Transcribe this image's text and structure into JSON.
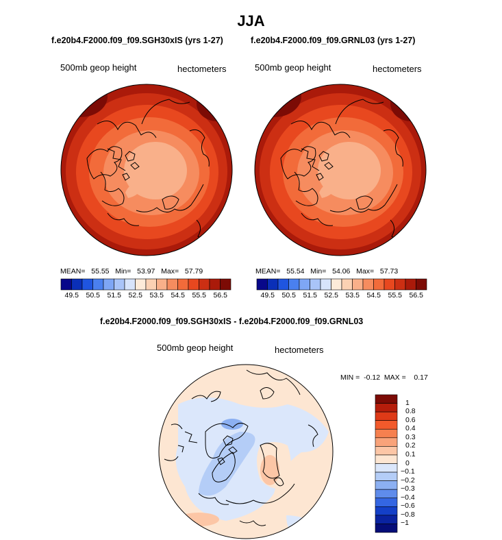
{
  "title": "JJA",
  "panels": [
    {
      "run_title": "f.e20b4.F2000.f09_f09.SGH30xIS (yrs 1-27)",
      "left_label": "500mb geop height",
      "right_label": "hectometers",
      "stats": {
        "mean_label": "MEAN=",
        "mean": "55.55",
        "min_label": "Min=",
        "min": "53.97",
        "max_label": "Max=",
        "max": "57.79"
      }
    },
    {
      "run_title": "f.e20b4.F2000.f09_f09.GRNL03 (yrs 1-27)",
      "left_label": "500mb geop height",
      "right_label": "hectometers",
      "stats": {
        "mean_label": "MEAN=",
        "mean": "55.54",
        "min_label": "Min=",
        "min": "54.06",
        "max_label": "Max=",
        "max": "57.73"
      }
    }
  ],
  "diff_panel": {
    "run_title": "f.e20b4.F2000.f09_f09.SGH30xIS - f.e20b4.F2000.f09_f09.GRNL03",
    "left_label": "500mb geop height",
    "right_label": "hectometers",
    "stats": {
      "min_label": "MIN =",
      "min": "-0.12",
      "max_label": "MAX =",
      "max": "0.17"
    }
  },
  "colorbar_horizontal": {
    "labels": [
      "49.5",
      "50.5",
      "51.5",
      "52.5",
      "53.5",
      "54.5",
      "55.5",
      "56.5"
    ],
    "colors": [
      "#08088a",
      "#0a2fb8",
      "#1f55e0",
      "#4a80ef",
      "#7ea6f5",
      "#a9c4f8",
      "#d7e4fb",
      "#fdebd9",
      "#fbd1b3",
      "#f9b08a",
      "#f68c5f",
      "#f26b3a",
      "#e8481f",
      "#cc2f13",
      "#aa1a0a",
      "#7c0b05"
    ]
  },
  "colorbar_vertical": {
    "labels": [
      "1",
      "0.8",
      "0.6",
      "0.4",
      "0.3",
      "0.2",
      "0.1",
      "0",
      "−0.1",
      "−0.2",
      "−0.3",
      "−0.4",
      "−0.6",
      "−0.8",
      "−1"
    ],
    "colors": [
      "#7c0b05",
      "#b51d0b",
      "#de3a17",
      "#f25a2b",
      "#f6804f",
      "#f9a37a",
      "#fcc6a6",
      "#fde6d2",
      "#dbe7fb",
      "#b4cdf7",
      "#8cb0f2",
      "#5f8ceb",
      "#3466e2",
      "#1440c8",
      "#0a23a0",
      "#050d78"
    ]
  },
  "chart_data": {
    "type": "heatmap",
    "title": "JJA",
    "variable": "500mb geop height",
    "units": "hectometers",
    "projection": "north polar stereographic",
    "panels": [
      {
        "name": "f.e20b4.F2000.f09_f09.SGH30xIS (yrs 1-27)",
        "mean": 55.55,
        "min": 53.97,
        "max": 57.79,
        "levels": [
          49.5,
          50.5,
          51.5,
          52.5,
          53.5,
          54.5,
          55.5,
          56.5
        ]
      },
      {
        "name": "f.e20b4.F2000.f09_f09.GRNL03 (yrs 1-27)",
        "mean": 55.54,
        "min": 54.06,
        "max": 57.73,
        "levels": [
          49.5,
          50.5,
          51.5,
          52.5,
          53.5,
          54.5,
          55.5,
          56.5
        ]
      },
      {
        "name": "f.e20b4.F2000.f09_f09.SGH30xIS - f.e20b4.F2000.f09_f09.GRNL03",
        "min": -0.12,
        "max": 0.17,
        "levels": [
          -1,
          -0.8,
          -0.6,
          -0.4,
          -0.3,
          -0.2,
          -0.1,
          0,
          0.1,
          0.2,
          0.3,
          0.4,
          0.6,
          0.8,
          1
        ]
      }
    ]
  }
}
